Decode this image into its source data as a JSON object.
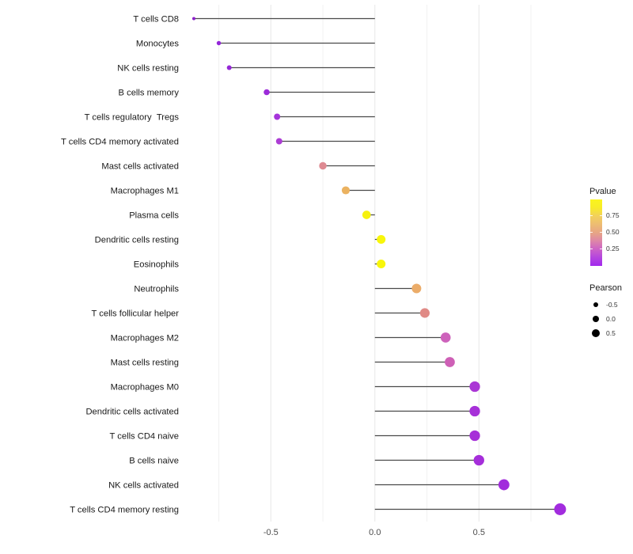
{
  "chart_data": {
    "type": "lollipop",
    "orientation": "horizontal",
    "title": "",
    "xlabel": "",
    "ylabel": "",
    "xlim": [
      -0.9,
      0.95
    ],
    "grid": "vertical-only",
    "x_axis": {
      "ticks": [
        {
          "label": "-0.5",
          "value": -0.5
        },
        {
          "label": "0.0",
          "value": 0.0
        },
        {
          "label": "0.5",
          "value": 0.5
        }
      ],
      "grid_major": [
        -0.5,
        0.0,
        0.5
      ],
      "grid_minor": [
        -0.75,
        -0.25,
        0.25,
        0.75
      ]
    },
    "categories": [
      "T cells CD8",
      "Monocytes",
      "NK cells resting",
      "B cells memory",
      "T cells regulatory  Tregs",
      "T cells CD4 memory activated",
      "Mast cells activated",
      "Macrophages M1",
      "Plasma cells",
      "Dendritic cells resting",
      "Eosinophils",
      "Neutrophils",
      "T cells follicular helper",
      "Macrophages M2",
      "Mast cells resting",
      "Macrophages M0",
      "Dendritic cells activated",
      "T cells CD4 naive",
      "B cells naive",
      "NK cells activated",
      "T cells CD4 memory resting"
    ],
    "series": [
      {
        "name": "Pearson",
        "values": [
          -0.87,
          -0.75,
          -0.7,
          -0.52,
          -0.47,
          -0.46,
          -0.25,
          -0.14,
          -0.04,
          0.03,
          0.03,
          0.2,
          0.24,
          0.34,
          0.36,
          0.48,
          0.48,
          0.48,
          0.5,
          0.62,
          0.89
        ]
      }
    ],
    "point_colors": [
      "#8B1FC9",
      "#9326D8",
      "#9527D7",
      "#9C2BD9",
      "#A534DA",
      "#AC3DD4",
      "#DE8A92",
      "#EBB260",
      "#F6F10E",
      "#F8F60B",
      "#F8F60B",
      "#EBAC69",
      "#E08A86",
      "#CD62BB",
      "#CE60B6",
      "#AA36D5",
      "#A630D8",
      "#A630D8",
      "#A52EDA",
      "#A12BDC",
      "#A22CDE"
    ],
    "stem_color": "#4a4a4a",
    "label_color": "#1a1a1a",
    "tick_label_color": "#4d4d4d",
    "grid_major_color": "#e7e7e7",
    "grid_minor_color": "#f2f2f2"
  },
  "legend": {
    "pvalue": {
      "title": "Pvalue",
      "ticks": [
        "0.75",
        "0.50",
        "0.25"
      ],
      "gradient_stops_bottom_to_top": [
        "#A228ED",
        "#B445DF",
        "#CC62C7",
        "#DD86A8",
        "#E7A585",
        "#EDBC73",
        "#F2D05C",
        "#F8EB28",
        "#FAF51D"
      ]
    },
    "pearson": {
      "title": "Pearson",
      "entries": [
        {
          "label": "-0.5"
        },
        {
          "label": "0.0"
        },
        {
          "label": "0.5"
        }
      ]
    }
  }
}
